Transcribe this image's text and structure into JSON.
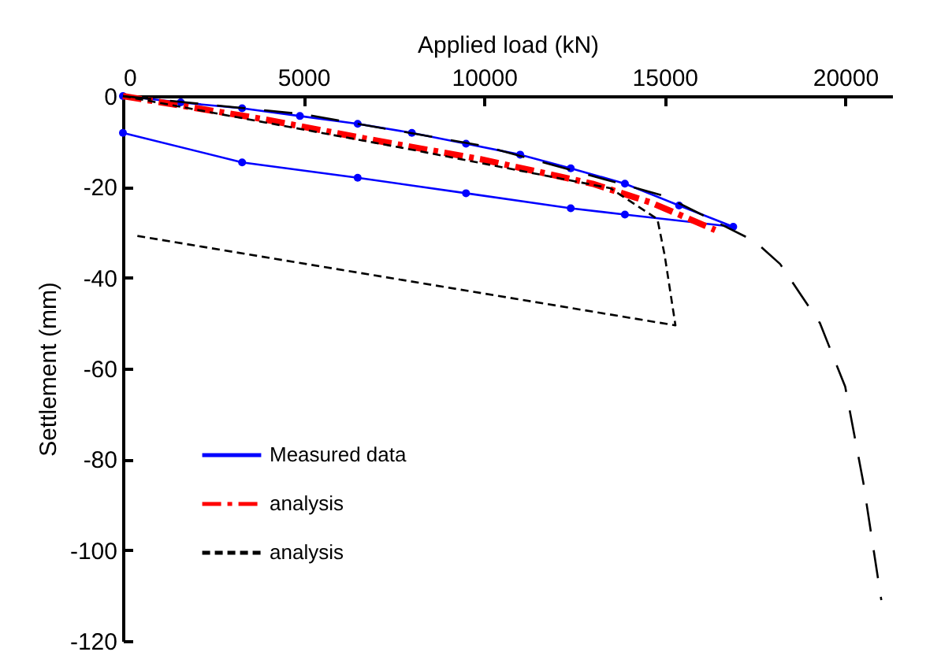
{
  "chart_data": {
    "type": "line",
    "xlabel": "Applied load (kN)",
    "ylabel": "Settlement (mm)",
    "xlim": [
      0,
      21300
    ],
    "xticks": [
      0,
      5000,
      10000,
      15000,
      20000
    ],
    "ylim": [
      -120,
      0
    ],
    "yticks": [
      0,
      -20,
      -40,
      -60,
      -80,
      -100,
      -120
    ],
    "grid": false,
    "legend": "bottom left",
    "series": [
      {
        "name": "Measured data",
        "color": "#0000ff",
        "marker": "circle",
        "line_style": "solid",
        "x": [
          0,
          1600,
          3300,
          4900,
          6500,
          8000,
          9500,
          11000,
          12400,
          13900,
          15400,
          16900,
          13900,
          12400,
          9500,
          6500,
          3300,
          0
        ],
        "values": [
          0,
          -1.4,
          -2.7,
          -4.4,
          -6.1,
          -8.1,
          -10.5,
          -12.9,
          -15.9,
          -19.3,
          -24.1,
          -28.8,
          -26.1,
          -24.7,
          -21.4,
          -18.0,
          -14.6,
          -8.1
        ]
      },
      {
        "name": "analysis",
        "color": "#ff0000",
        "marker": "none",
        "line_style": "dashed",
        "x": [
          0,
          3900,
          6800,
          9900,
          13000,
          14600,
          16400
        ],
        "values": [
          0,
          -5.1,
          -9.5,
          -13.9,
          -19.3,
          -23.4,
          -29.5
        ]
      },
      {
        "color": "#000000",
        "marker": "none",
        "line_style": "dashed",
        "x": [
          0,
          5000,
          10000,
          15000,
          17500,
          18200,
          19300,
          20000,
          20500,
          21000
        ],
        "values": [
          0,
          -4,
          -11,
          -22,
          -32,
          -37,
          -50,
          -64,
          -85,
          -111
        ]
      },
      {
        "name": "analysis",
        "color": "#000000",
        "marker": "none",
        "line_style": "dashed",
        "x": [
          0,
          7800,
          13500,
          14800,
          15000,
          15300,
          400
        ],
        "values": [
          0,
          -11.5,
          -20.3,
          -27.1,
          -35,
          -50.5,
          -30.8
        ]
      }
    ]
  }
}
